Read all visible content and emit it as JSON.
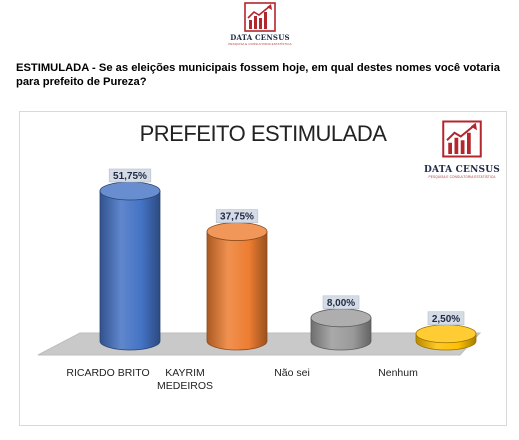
{
  "brand": {
    "name": "DATA CENSUS",
    "tagline": "PESQUISA E CONSULTORIA ESTATÍSTICA",
    "color": "#b3262d"
  },
  "question": "ESTIMULADA - Se as eleições municipais fossem hoje, em qual destes nomes você votaria para prefeito de Pureza?",
  "chart_data": {
    "type": "bar",
    "title": "PREFEITO ESTIMULADA",
    "categories": [
      "RICARDO BRITO",
      "KAYRIM MEDEIROS",
      "Não sei",
      "Nenhum"
    ],
    "values": [
      51.75,
      37.75,
      8.0,
      2.5
    ],
    "data_labels": [
      "51,75%",
      "37,75%",
      "8,00%",
      "2,50%"
    ],
    "colors": [
      "#4472c4",
      "#ed7d31",
      "#9a9a9a",
      "#ffc000"
    ],
    "style": "3d-cylinder",
    "ylim": [
      0,
      60
    ],
    "grid": false,
    "legend": "none"
  }
}
